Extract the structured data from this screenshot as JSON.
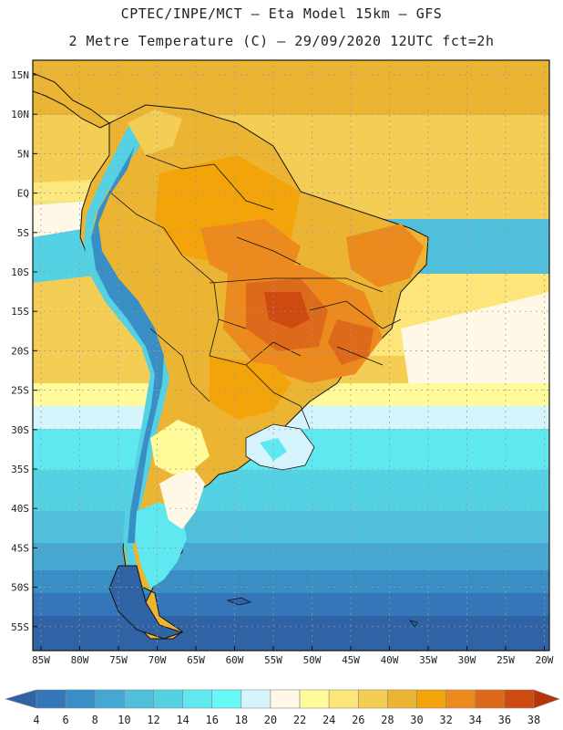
{
  "header": {
    "line1": "CPTEC/INPE/MCT –   Eta Model 15km – GFS",
    "line2": "2 Metre Temperature (C) – 29/09/2020 12UTC fct=2h"
  },
  "axes": {
    "lat_labels": [
      "15N",
      "10N",
      "5N",
      "EQ",
      "5S",
      "10S",
      "15S",
      "20S",
      "25S",
      "30S",
      "35S",
      "40S",
      "45S",
      "50S",
      "55S"
    ],
    "lon_labels": [
      "85W",
      "80W",
      "75W",
      "70W",
      "65W",
      "60W",
      "55W",
      "50W",
      "45W",
      "40W",
      "35W",
      "30W",
      "25W",
      "20W"
    ]
  },
  "colorbar": {
    "labels": [
      "4",
      "6",
      "8",
      "10",
      "12",
      "14",
      "16",
      "18",
      "20",
      "22",
      "24",
      "26",
      "28",
      "30",
      "32",
      "34",
      "36",
      "38"
    ],
    "colors": [
      "#2f63a5",
      "#3476b7",
      "#3a8ec6",
      "#44a8d2",
      "#4fbfdb",
      "#54d2e3",
      "#5fe8ef",
      "#67f8f8",
      "#d5f4fb",
      "#fff8e6",
      "#fffa9a",
      "#fde57a",
      "#f4cd55",
      "#ebb533",
      "#f3a40b",
      "#ec8a1e",
      "#dd6a1a",
      "#cd4b10",
      "#b83508"
    ]
  },
  "theme": {
    "grid": "#9a9a9a",
    "coast": "#111111"
  }
}
